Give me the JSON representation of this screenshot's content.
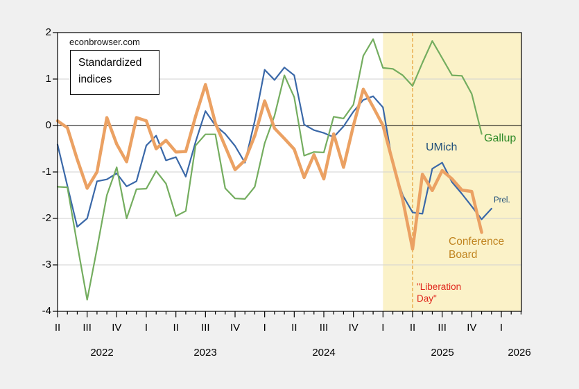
{
  "page": {
    "background": "#F0F0F0",
    "plot_background": "#FFFFFF"
  },
  "branding": {
    "site": "econbrowser.com"
  },
  "annotation_box": {
    "line1": "Standardized",
    "line2": "indices"
  },
  "chart_data": {
    "type": "line",
    "title": "Standardized indices",
    "x_unit": "month",
    "x_first": "2022-04",
    "x_axis_end": "2026-03",
    "x_quarter_labels": [
      "II",
      "III",
      "IV",
      "I",
      "II",
      "III",
      "IV",
      "I",
      "II",
      "III",
      "IV",
      "I",
      "II",
      "III",
      "IV",
      "I"
    ],
    "x_year_labels": [
      "2022",
      "2023",
      "2024",
      "2025",
      "2026"
    ],
    "y_ticks": [
      2,
      1,
      0,
      -1,
      -2,
      -3,
      -4
    ],
    "ylim": [
      -4,
      2
    ],
    "grid": "horizontal",
    "zero_line": true,
    "legend_position": "inline-labels",
    "series": [
      {
        "name": "UMich",
        "color": "#3A68A8",
        "label_color": "#1F4E79",
        "width": 2.2,
        "note": "last point is preliminary",
        "values": [
          -0.41,
          -1.3,
          -2.18,
          -2.0,
          -1.2,
          -1.16,
          -1.03,
          -1.31,
          -1.2,
          -0.43,
          -0.22,
          -0.75,
          -0.68,
          -1.1,
          -0.35,
          0.31,
          0.0,
          -0.18,
          -0.44,
          -0.8,
          0.1,
          1.2,
          0.98,
          1.25,
          1.08,
          0.02,
          -0.1,
          -0.16,
          -0.25,
          -0.02,
          0.3,
          0.55,
          0.63,
          0.39,
          -0.85,
          -1.5,
          -1.87,
          -1.9,
          -0.93,
          -0.8,
          -1.22,
          -1.47,
          -1.74,
          -2.02,
          -1.79
        ]
      },
      {
        "name": "Gallup",
        "color": "#74AD5F",
        "label_color": "#2F8A28",
        "width": 2.2,
        "values": [
          -1.32,
          -1.33,
          -2.56,
          -3.75,
          -2.65,
          -1.5,
          -0.9,
          -2.0,
          -1.37,
          -1.36,
          -0.98,
          -1.25,
          -1.95,
          -1.84,
          -0.43,
          -0.19,
          -0.19,
          -1.35,
          -1.57,
          -1.58,
          -1.32,
          -0.38,
          0.21,
          1.08,
          0.61,
          -0.65,
          -0.57,
          -0.58,
          0.19,
          0.15,
          0.45,
          1.5,
          1.86,
          1.24,
          1.22,
          1.08,
          0.85,
          1.35,
          1.82,
          1.45,
          1.08,
          1.07,
          0.68,
          -0.18
        ]
      },
      {
        "name": "Conference Board",
        "color": "#EBA163",
        "label_color": "#C08420",
        "width": 4.5,
        "values": [
          0.1,
          -0.05,
          -0.73,
          -1.35,
          -1.0,
          0.17,
          -0.4,
          -0.78,
          0.17,
          0.1,
          -0.5,
          -0.32,
          -0.57,
          -0.56,
          0.2,
          0.88,
          0.05,
          -0.45,
          -0.95,
          -0.75,
          -0.22,
          0.53,
          -0.06,
          -0.28,
          -0.51,
          -1.12,
          -0.63,
          -1.15,
          -0.18,
          -0.9,
          0.0,
          0.78,
          0.4,
          0.0,
          -0.8,
          -1.6,
          -2.66,
          -1.05,
          -1.4,
          -0.97,
          -1.15,
          -1.39,
          -1.42,
          -2.3
        ]
      }
    ],
    "shaded_region": {
      "start": "2025-01",
      "end": "2026-03",
      "color": "#FBF2C8"
    },
    "vline": {
      "x": "2025-04",
      "style": "dashed",
      "color": "#E8A33C",
      "label_color": "#E0261C"
    },
    "annotations": {
      "prel": "Prel.",
      "liberation_line1": "\"Liberation",
      "liberation_line2": "Day\"",
      "cb_line1": "Conference",
      "cb_line2": "Board"
    },
    "axis_colors": {
      "gridline": "#D2D2D2",
      "axis": "#000000"
    }
  }
}
